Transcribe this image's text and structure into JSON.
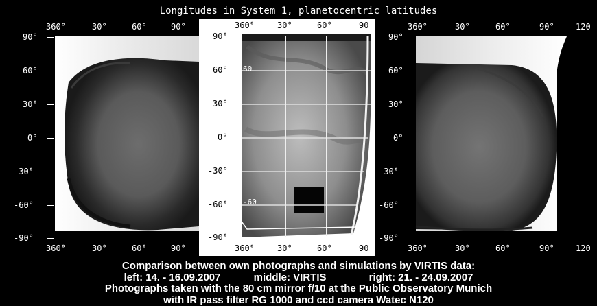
{
  "header": {
    "title": "Longitudes in System 1, planetocentric latitudes"
  },
  "panels": {
    "left": {
      "top_lon": [
        "360°",
        "30°",
        "60°",
        "90°"
      ],
      "bottom_lon": [
        "360°",
        "30°",
        "60°",
        "90°"
      ],
      "lat": [
        "90°",
        "60°",
        "30°",
        "0°",
        "-30°",
        "-60°",
        "-90°"
      ]
    },
    "middle": {
      "top_lon": [
        "360°",
        "30°",
        "60°",
        "90"
      ],
      "bottom_lon": [
        "360°",
        "30°",
        "60°",
        "90"
      ],
      "lat": [
        "90°",
        "60°",
        "30°",
        "0°",
        "-30°",
        "-60°",
        "-90°"
      ],
      "inner_label_60": "60",
      "inner_label_m60": "-60"
    },
    "right": {
      "top_lon": [
        "360°",
        "30°",
        "60°",
        "90°",
        "120"
      ],
      "bottom_lon": [
        "360°",
        "30°",
        "60°",
        "90°",
        "120"
      ],
      "lat": [
        "90°",
        "60°",
        "30°",
        "0°",
        "-30°",
        "-60°",
        "-90°"
      ]
    }
  },
  "caption": {
    "line1": "Comparison between own photographs and simulations by VIRTIS data:",
    "left_label": "left: 14. - 16.09.2007",
    "middle_label": "middle: VIRTIS",
    "right_label": "right: 21. - 24.09.2007",
    "line3": "Photographs taken with the 80 cm mirror f/10 at the Public Observatory Munich",
    "line4": "with IR pass filter RG 1000 and ccd camera Watec N120"
  }
}
